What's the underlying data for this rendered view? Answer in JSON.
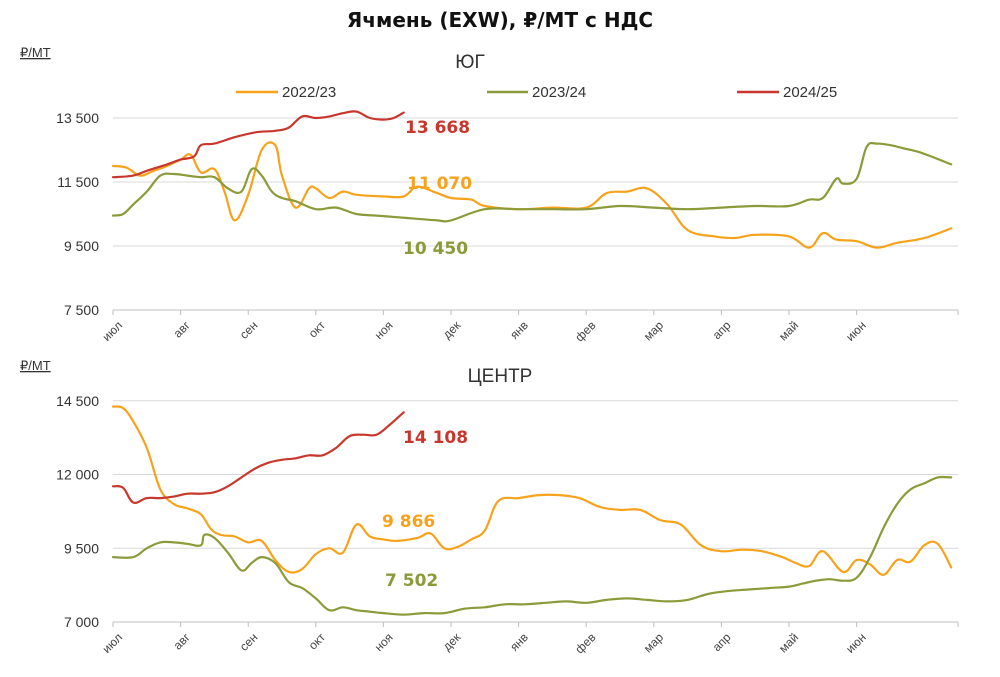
{
  "title": "Ячмень (EXW), ₽/МТ с НДС",
  "colors": {
    "s2022": "#F7A21B",
    "s2023": "#8C9A3A",
    "s2024": "#C8372D"
  },
  "chart_data": [
    {
      "type": "line",
      "subtitle": "ЮГ",
      "unit": "₽/МТ",
      "ylim": [
        7500,
        15000
      ],
      "yticks": [
        7500,
        9500,
        11500,
        13500
      ],
      "ytick_labels": [
        "7 500",
        "9 500",
        "11 500",
        "13 500"
      ],
      "xlim": [
        0,
        12.5
      ],
      "x_tick_labels": [
        "июл",
        "авг",
        "сен",
        "окт",
        "ноя",
        "дек",
        "янв",
        "фев",
        "мар",
        "апр",
        "май",
        "июн"
      ],
      "grid": true,
      "legend_position": "top",
      "series": [
        {
          "name": "2022/23",
          "color": "#F7A21B",
          "end_label": "11 070",
          "x": [
            0,
            0.2,
            0.4,
            0.6,
            0.8,
            1.0,
            1.15,
            1.3,
            1.5,
            1.65,
            1.8,
            2.0,
            2.2,
            2.4,
            2.5,
            2.7,
            2.9,
            3.0,
            3.2,
            3.4,
            3.6,
            4.0,
            4.3,
            4.5,
            4.8,
            5.0,
            5.3,
            5.5,
            6.0,
            6.5,
            7.0,
            7.3,
            7.6,
            7.9,
            8.2,
            8.5,
            8.9,
            9.2,
            9.5,
            10.0,
            10.3,
            10.5,
            10.7,
            11.0,
            11.3,
            11.6,
            12.0,
            12.4
          ],
          "y": [
            12000,
            11950,
            11700,
            11850,
            12000,
            12200,
            12350,
            11800,
            11900,
            11200,
            10300,
            11100,
            12500,
            12650,
            11700,
            10700,
            11300,
            11300,
            11000,
            11200,
            11100,
            11050,
            11050,
            11350,
            11150,
            11000,
            10950,
            10750,
            10650,
            10700,
            10700,
            11150,
            11200,
            11300,
            10800,
            10000,
            9800,
            9750,
            9850,
            9800,
            9450,
            9900,
            9700,
            9650,
            9450,
            9600,
            9750,
            10050
          ]
        },
        {
          "name": "2023/24",
          "color": "#8C9A3A",
          "end_label": "10 450",
          "x": [
            0,
            0.15,
            0.3,
            0.5,
            0.7,
            0.9,
            1.1,
            1.3,
            1.5,
            1.7,
            1.9,
            2.05,
            2.2,
            2.35,
            2.5,
            2.7,
            3.0,
            3.3,
            3.6,
            3.9,
            4.2,
            4.5,
            4.8,
            5.0,
            5.5,
            6.0,
            6.5,
            7.0,
            7.5,
            8.0,
            8.5,
            9.0,
            9.5,
            10.0,
            10.3,
            10.5,
            10.7,
            10.8,
            11.0,
            11.15,
            11.3,
            11.5,
            11.7,
            11.9,
            12.1,
            12.4
          ],
          "y": [
            10450,
            10500,
            10800,
            11200,
            11700,
            11750,
            11700,
            11650,
            11650,
            11300,
            11200,
            11900,
            11700,
            11200,
            11000,
            10900,
            10650,
            10700,
            10500,
            10450,
            10400,
            10350,
            10300,
            10300,
            10650,
            10650,
            10650,
            10650,
            10750,
            10700,
            10650,
            10700,
            10750,
            10750,
            10950,
            11000,
            11600,
            11450,
            11600,
            12600,
            12700,
            12650,
            12550,
            12450,
            12300,
            12050
          ]
        },
        {
          "name": "2024/25",
          "color": "#C8372D",
          "end_label": "13 668",
          "x": [
            0,
            0.3,
            0.5,
            0.8,
            1.0,
            1.2,
            1.3,
            1.5,
            1.8,
            2.1,
            2.4,
            2.6,
            2.8,
            3.0,
            3.2,
            3.4,
            3.6,
            3.8,
            4.0,
            4.15,
            4.3
          ],
          "y": [
            11650,
            11700,
            11850,
            12050,
            12200,
            12300,
            12650,
            12700,
            12900,
            13050,
            13100,
            13200,
            13550,
            13500,
            13550,
            13650,
            13700,
            13500,
            13450,
            13500,
            13668
          ]
        }
      ]
    },
    {
      "type": "line",
      "subtitle": "ЦЕНТР",
      "unit": "₽/МТ",
      "ylim": [
        7000,
        15000
      ],
      "yticks": [
        7000,
        9500,
        12000,
        14500
      ],
      "ytick_labels": [
        "7 000",
        "9 500",
        "12 000",
        "14 500"
      ],
      "xlim": [
        0,
        12.5
      ],
      "x_tick_labels": [
        "июл",
        "авг",
        "сен",
        "окт",
        "ноя",
        "дек",
        "янв",
        "фев",
        "мар",
        "апр",
        "май",
        "июн"
      ],
      "grid": true,
      "series": [
        {
          "name": "2022/23",
          "color": "#F7A21B",
          "end_label": "9 866",
          "x": [
            0,
            0.15,
            0.3,
            0.5,
            0.7,
            0.9,
            1.1,
            1.3,
            1.45,
            1.6,
            1.8,
            2.0,
            2.2,
            2.4,
            2.6,
            2.8,
            3.0,
            3.2,
            3.4,
            3.6,
            3.8,
            4.0,
            4.2,
            4.5,
            4.7,
            4.9,
            5.1,
            5.3,
            5.5,
            5.7,
            6.0,
            6.3,
            6.6,
            6.9,
            7.2,
            7.5,
            7.8,
            8.1,
            8.4,
            8.7,
            9.0,
            9.3,
            9.6,
            9.9,
            10.1,
            10.3,
            10.5,
            10.8,
            11.0,
            11.2,
            11.4,
            11.6,
            11.8,
            12.0,
            12.2,
            12.4
          ],
          "y": [
            14300,
            14250,
            13800,
            12900,
            11500,
            11000,
            10850,
            10650,
            10150,
            9950,
            9900,
            9700,
            9750,
            9100,
            8700,
            8800,
            9300,
            9500,
            9350,
            10300,
            9900,
            9800,
            9750,
            9850,
            10000,
            9500,
            9550,
            9800,
            10100,
            11100,
            11200,
            11300,
            11300,
            11200,
            10900,
            10800,
            10800,
            10450,
            10300,
            9600,
            9400,
            9450,
            9400,
            9200,
            9000,
            8900,
            9400,
            8700,
            9100,
            8950,
            8600,
            9100,
            9050,
            9600,
            9650,
            8850
          ]
        },
        {
          "name": "2023/24",
          "color": "#8C9A3A",
          "end_label": "7 502",
          "x": [
            0,
            0.3,
            0.5,
            0.7,
            0.9,
            1.1,
            1.3,
            1.35,
            1.5,
            1.7,
            1.9,
            2.05,
            2.2,
            2.4,
            2.6,
            2.8,
            3.0,
            3.2,
            3.4,
            3.6,
            3.8,
            4.0,
            4.3,
            4.6,
            4.9,
            5.2,
            5.5,
            5.8,
            6.1,
            6.4,
            6.7,
            7.0,
            7.3,
            7.6,
            7.9,
            8.2,
            8.5,
            8.8,
            9.1,
            9.4,
            9.7,
            10.0,
            10.2,
            10.4,
            10.6,
            10.8,
            11.0,
            11.2,
            11.4,
            11.6,
            11.8,
            12.0,
            12.2,
            12.4
          ],
          "y": [
            9200,
            9200,
            9500,
            9700,
            9700,
            9650,
            9600,
            9950,
            9850,
            9350,
            8750,
            9000,
            9200,
            9000,
            8350,
            8150,
            7800,
            7400,
            7500,
            7400,
            7350,
            7300,
            7250,
            7300,
            7300,
            7450,
            7500,
            7600,
            7600,
            7650,
            7700,
            7650,
            7750,
            7800,
            7750,
            7700,
            7750,
            7950,
            8050,
            8100,
            8150,
            8200,
            8300,
            8400,
            8450,
            8400,
            8500,
            9200,
            10200,
            11000,
            11500,
            11700,
            11900,
            11900
          ]
        },
        {
          "name": "2024/25",
          "color": "#C8372D",
          "end_label": "14 108",
          "x": [
            0,
            0.15,
            0.3,
            0.5,
            0.7,
            0.9,
            1.1,
            1.3,
            1.5,
            1.7,
            1.9,
            2.1,
            2.3,
            2.5,
            2.7,
            2.9,
            3.1,
            3.3,
            3.5,
            3.7,
            3.9,
            4.1,
            4.3
          ],
          "y": [
            11600,
            11550,
            11050,
            11200,
            11200,
            11250,
            11350,
            11350,
            11400,
            11600,
            11900,
            12200,
            12400,
            12500,
            12550,
            12650,
            12650,
            12900,
            13300,
            13350,
            13350,
            13700,
            14108
          ]
        }
      ]
    }
  ]
}
